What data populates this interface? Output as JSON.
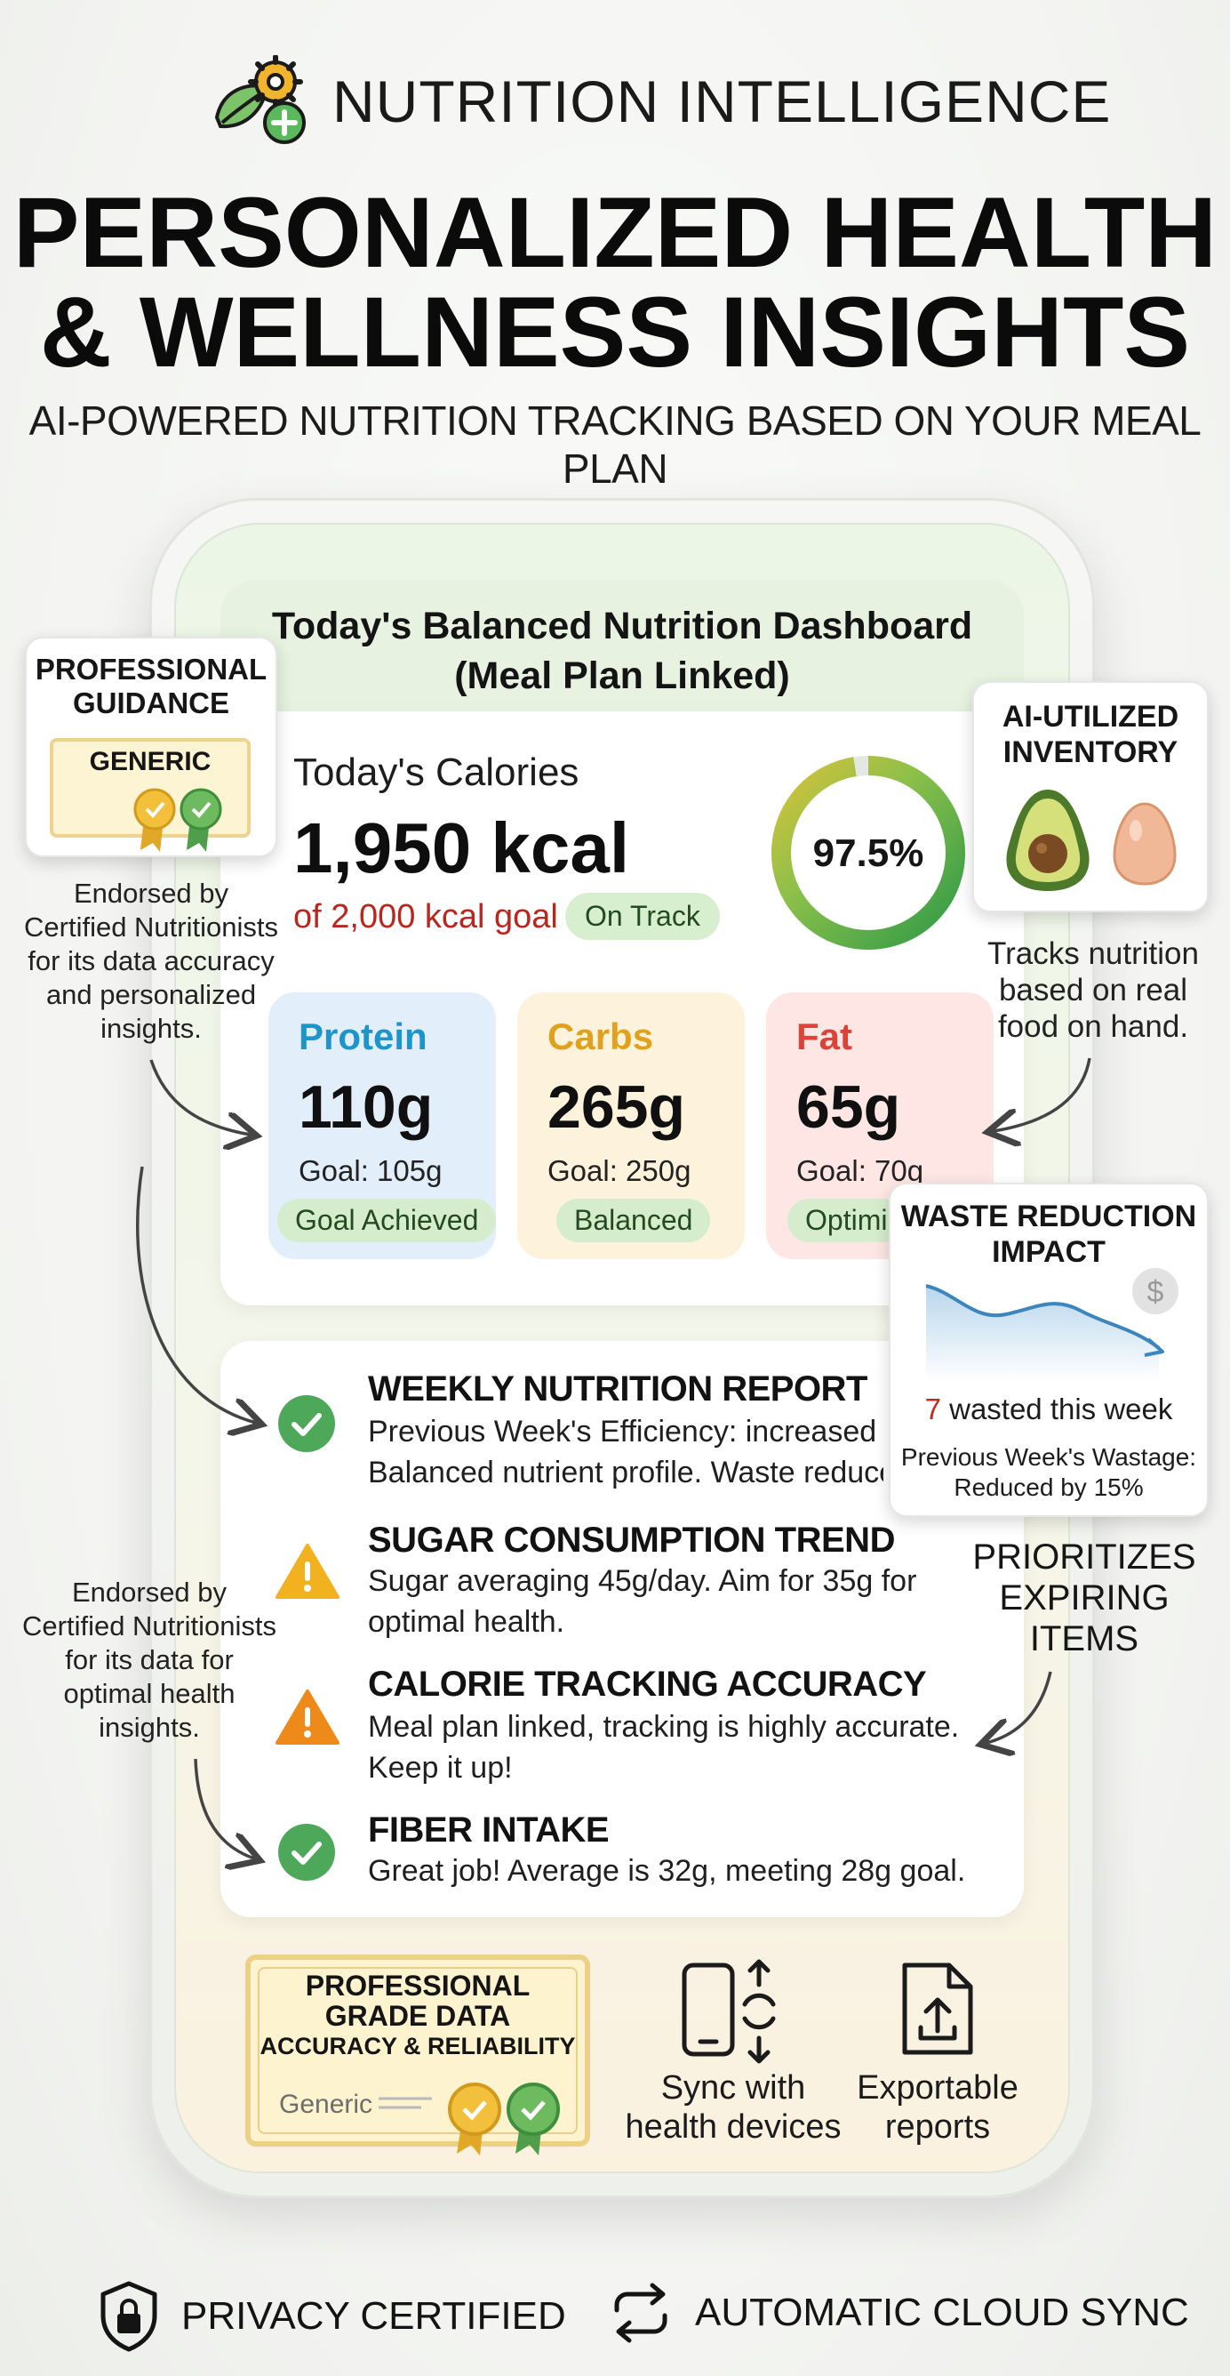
{
  "brand": {
    "name": "NUTRITION INTELLIGENCE",
    "icon": "leaf-gear-plus-icon"
  },
  "headline": {
    "line1": "PERSONALIZED HEALTH",
    "line2": "& WELLNESS INSIGHTS"
  },
  "subheadline": "AI-POWERED NUTRITION TRACKING BASED ON YOUR MEAL PLAN",
  "dashboard": {
    "title_line1": "Today's Balanced Nutrition Dashboard",
    "title_line2": "(Meal Plan Linked)",
    "calories": {
      "label": "Today's Calories",
      "value": "1,950 kcal",
      "goal": "of 2,000 kcal goal",
      "status": "On Track",
      "percent_label": "97.5%",
      "percent": 97.5
    },
    "macros": [
      {
        "name": "Protein",
        "value": "110g",
        "goal": "Goal: 105g",
        "status": "Goal Achieved",
        "color": "#1e95c9"
      },
      {
        "name": "Carbs",
        "value": "265g",
        "goal": "Goal: 250g",
        "status": "Balanced",
        "color": "#e0a21e"
      },
      {
        "name": "Fat",
        "value": "65g",
        "goal": "Goal: 70g",
        "status": "Optimi",
        "color": "#d9433a"
      }
    ],
    "insights": [
      {
        "icon": "check-circle-icon",
        "title": "WEEKLY NUTRITION REPORT",
        "line1": "Previous Week's Efficiency: increased t",
        "line2": "Balanced nutrient profile. Waste reduce"
      },
      {
        "icon": "warning-icon",
        "title": "SUGAR CONSUMPTION TREND",
        "line1": "Sugar averaging 45g/day. Aim for 35g for",
        "line2": "optimal health."
      },
      {
        "icon": "warning-icon",
        "title": "CALORIE TRACKING ACCURACY",
        "line1": "Meal plan linked, tracking is highly accurate.",
        "line2": "Keep it up!"
      },
      {
        "icon": "check-circle-icon",
        "title": "FIBER INTAKE",
        "line1": "Great job! Average is 32g, meeting 28g goal.",
        "line2": ""
      }
    ],
    "certificate": {
      "title_line1": "PROFESSIONAL",
      "title_line2": "GRADE DATA",
      "subtitle": "ACCURACY & RELIABILITY",
      "generic": "Generic"
    },
    "features": [
      {
        "icon": "phone-sync-icon",
        "line1": "Sync with",
        "line2": "health devices"
      },
      {
        "icon": "export-file-icon",
        "line1": "Exportable",
        "line2": "reports"
      }
    ]
  },
  "callouts": {
    "professional_guidance": {
      "title_line1": "PROFESSIONAL",
      "title_line2": "GUIDANCE",
      "badge": "GENERIC",
      "note": [
        "Endorsed by",
        "Certified Nutritionists",
        "for its data accuracy",
        "and personalized",
        "insights."
      ]
    },
    "second_note": [
      "Endorsed by",
      "Certified Nutritionists",
      "for its data for",
      "optimal health",
      "insights."
    ],
    "ai_inventory": {
      "title_line1": "AI-UTILIZED",
      "title_line2": "INVENTORY",
      "note": [
        "Tracks nutrition",
        "based on real",
        "food on hand."
      ]
    },
    "waste_reduction": {
      "title_line1": "WASTE REDUCTION",
      "title_line2": "IMPACT",
      "count": "7",
      "count_text": " wasted this week",
      "prev_line1": "Previous Week's Wastage:",
      "prev_line2": "Reduced by 15%"
    },
    "prioritizes": [
      "PRIORITIZES",
      "EXPIRING",
      "ITEMS"
    ]
  },
  "footer": [
    {
      "icon": "shield-lock-icon",
      "label": "PRIVACY CERTIFIED"
    },
    {
      "icon": "sync-arrows-icon",
      "label": "AUTOMATIC CLOUD SYNC"
    }
  ]
}
